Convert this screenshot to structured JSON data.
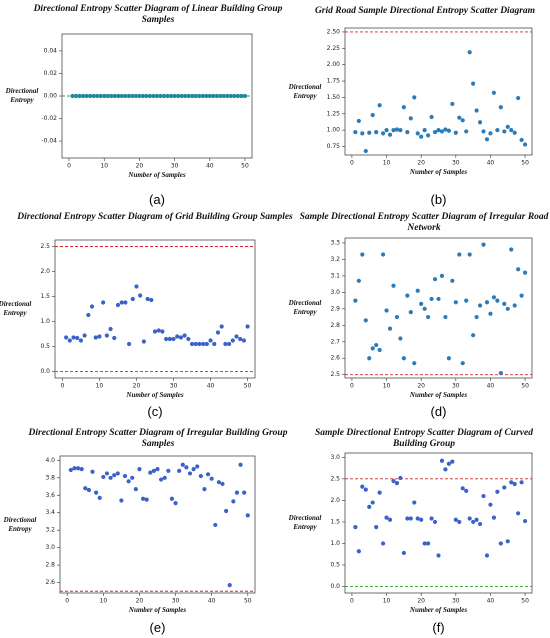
{
  "chart_data": [
    {
      "type": "scatter",
      "title": "Directional Entropy Scatter Diagram of Linear Building Group Samples",
      "xlabel": "Number of Samples",
      "ylabel": "Directional Entropy",
      "caption": "(a)",
      "color": "#1a8a99",
      "x": [
        1,
        2,
        3,
        4,
        5,
        6,
        7,
        8,
        9,
        10,
        11,
        12,
        13,
        14,
        15,
        16,
        17,
        18,
        19,
        20,
        21,
        22,
        23,
        24,
        25,
        26,
        27,
        28,
        29,
        30,
        31,
        32,
        33,
        34,
        35,
        36,
        37,
        38,
        39,
        40,
        41,
        42,
        43,
        44,
        45,
        46,
        47,
        48,
        49,
        50
      ],
      "values": [
        0,
        0,
        0,
        0,
        0,
        0,
        0,
        0,
        0,
        0,
        0,
        0,
        0,
        0,
        0,
        0,
        0,
        0,
        0,
        0,
        0,
        0,
        0,
        0,
        0,
        0,
        0,
        0,
        0,
        0,
        0,
        0,
        0,
        0,
        0,
        0,
        0,
        0,
        0,
        0,
        0,
        0,
        0,
        0,
        0,
        0,
        0,
        0,
        0,
        0
      ],
      "xlim": [
        -2,
        52
      ],
      "xticks": [
        0,
        10,
        20,
        30,
        40,
        50
      ],
      "ylim": [
        -0.055,
        0.055
      ],
      "yticks": [
        -0.04,
        -0.02,
        {
          "value": 0,
          "label": "0.00"
        },
        0.02,
        0.04
      ],
      "hlines": [
        {
          "value": 0,
          "color": "#2ca02c"
        }
      ]
    },
    {
      "type": "scatter",
      "title": "Grid Road Sample Directional Entropy Scatter Diagram",
      "xlabel": "Number of Samples",
      "ylabel": "Directional Entropy",
      "caption": "(b)",
      "color": "#2b7bb9",
      "x": [
        1,
        2,
        3,
        4,
        5,
        6,
        7,
        8,
        9,
        10,
        11,
        12,
        13,
        14,
        15,
        16,
        17,
        18,
        19,
        20,
        21,
        22,
        23,
        24,
        25,
        26,
        27,
        28,
        29,
        30,
        31,
        32,
        33,
        34,
        35,
        36,
        37,
        38,
        39,
        40,
        41,
        42,
        43,
        44,
        45,
        46,
        47,
        48,
        49,
        50
      ],
      "values": [
        0.97,
        1.14,
        0.95,
        0.68,
        0.96,
        1.23,
        0.97,
        1.38,
        0.95,
        1.0,
        0.93,
        1.0,
        1.01,
        1.0,
        1.35,
        0.97,
        1.18,
        1.5,
        0.95,
        0.9,
        1.0,
        0.92,
        1.2,
        0.97,
        1.0,
        0.98,
        1.01,
        0.99,
        1.4,
        0.96,
        1.19,
        1.15,
        0.98,
        2.19,
        1.71,
        1.3,
        1.12,
        0.98,
        0.86,
        0.95,
        1.57,
        1.0,
        1.35,
        0.98,
        1.05,
        1.0,
        0.96,
        1.49,
        0.85,
        0.78
      ],
      "xlim": [
        -2,
        52
      ],
      "xticks": [
        0,
        10,
        20,
        30,
        40,
        50
      ],
      "ylim": [
        0.62,
        2.56
      ],
      "yticks": [
        0.75,
        {
          "value": 1,
          "label": "1.00"
        },
        1.25,
        {
          "value": 1.5,
          "label": "1.50"
        },
        1.75,
        {
          "value": 2,
          "label": "2.00"
        },
        2.25,
        {
          "value": 2.5,
          "label": "2.50"
        }
      ],
      "hlines": [
        {
          "value": 2.5,
          "color": "#d62728"
        }
      ]
    },
    {
      "type": "scatter",
      "title": "Directional Entropy Scatter Diagram of Grid Building Group Samples",
      "xlabel": "Number of Samples",
      "ylabel": "Directional Entropy",
      "caption": "(c)",
      "color": "#3a62c8",
      "x": [
        1,
        2,
        3,
        4,
        5,
        6,
        7,
        8,
        9,
        10,
        11,
        12,
        13,
        14,
        15,
        16,
        17,
        18,
        19,
        20,
        21,
        22,
        23,
        24,
        25,
        26,
        27,
        28,
        29,
        30,
        31,
        32,
        33,
        34,
        35,
        36,
        37,
        38,
        39,
        40,
        41,
        42,
        43,
        44,
        45,
        46,
        47,
        48,
        49,
        50
      ],
      "values": [
        0.68,
        0.62,
        0.68,
        0.67,
        0.62,
        0.72,
        1.13,
        1.3,
        0.68,
        0.7,
        1.38,
        0.72,
        0.85,
        0.67,
        1.33,
        1.38,
        1.38,
        0.55,
        1.45,
        1.7,
        1.52,
        0.6,
        1.45,
        1.43,
        0.8,
        0.82,
        0.8,
        0.65,
        0.65,
        0.65,
        0.7,
        0.68,
        0.72,
        0.65,
        0.55,
        0.55,
        0.55,
        0.55,
        0.55,
        0.62,
        0.55,
        0.78,
        0.9,
        0.55,
        0.55,
        0.62,
        0.7,
        0.65,
        0.62,
        0.9
      ],
      "xlim": [
        -2,
        52
      ],
      "xticks": [
        0,
        10,
        20,
        30,
        40,
        50
      ],
      "ylim": [
        -0.13,
        2.63
      ],
      "yticks": [
        {
          "value": 0,
          "label": "0.0"
        },
        0.5,
        {
          "value": 1,
          "label": "1.0"
        },
        1.5,
        {
          "value": 2,
          "label": "2.0"
        },
        2.5
      ],
      "hlines": [
        {
          "value": 2.5,
          "color": "#d62728"
        },
        {
          "value": 0,
          "color": "#2ca02c"
        }
      ]
    },
    {
      "type": "scatter",
      "title": "Sample Directional Entropy Scatter Diagram of Irregular Road Network",
      "xlabel": "Number of Samples",
      "ylabel": "Directional Entropy",
      "caption": "(d)",
      "color": "#2b7bb9",
      "x": [
        1,
        2,
        3,
        4,
        5,
        6,
        7,
        8,
        9,
        10,
        11,
        12,
        13,
        14,
        15,
        16,
        17,
        18,
        19,
        20,
        21,
        22,
        23,
        24,
        25,
        26,
        27,
        28,
        29,
        30,
        31,
        32,
        33,
        34,
        35,
        36,
        37,
        38,
        39,
        40,
        41,
        42,
        43,
        44,
        45,
        46,
        47,
        48,
        49,
        50
      ],
      "values": [
        2.95,
        3.07,
        3.23,
        2.83,
        2.6,
        2.66,
        2.68,
        2.65,
        3.23,
        2.89,
        2.78,
        3.04,
        2.85,
        2.72,
        2.6,
        2.98,
        2.88,
        2.57,
        3.01,
        2.93,
        2.9,
        2.85,
        2.96,
        3.08,
        2.96,
        3.1,
        2.85,
        2.6,
        3.07,
        2.94,
        3.23,
        2.57,
        2.95,
        3.23,
        2.74,
        2.85,
        2.92,
        3.29,
        2.94,
        2.87,
        2.97,
        2.95,
        2.51,
        2.93,
        2.9,
        3.26,
        2.92,
        3.14,
        2.98,
        3.12
      ],
      "xlim": [
        -2,
        52
      ],
      "xticks": [
        0,
        10,
        20,
        30,
        40,
        50
      ],
      "ylim": [
        2.48,
        3.33
      ],
      "yticks": [
        2.5,
        2.6,
        2.7,
        2.8,
        2.9,
        {
          "value": 3,
          "label": "3.0"
        },
        3.1,
        3.2,
        3.3
      ],
      "hlines": [
        {
          "value": 2.5,
          "color": "#d62728"
        }
      ]
    },
    {
      "type": "scatter",
      "title": "Directional Entropy Scatter Diagram of Irregular Building Group Samples",
      "xlabel": "Number of Samples",
      "ylabel": "Directional Entropy",
      "caption": "(e)",
      "color": "#3a62c8",
      "x": [
        1,
        2,
        3,
        4,
        5,
        6,
        7,
        8,
        9,
        10,
        11,
        12,
        13,
        14,
        15,
        16,
        17,
        18,
        19,
        20,
        21,
        22,
        23,
        24,
        25,
        26,
        27,
        28,
        29,
        30,
        31,
        32,
        33,
        34,
        35,
        36,
        37,
        38,
        39,
        40,
        41,
        42,
        43,
        44,
        45,
        46,
        47,
        48,
        49,
        50
      ],
      "values": [
        3.89,
        3.91,
        3.91,
        3.9,
        3.68,
        3.66,
        3.87,
        3.63,
        3.57,
        3.81,
        3.85,
        3.8,
        3.83,
        3.85,
        3.54,
        3.82,
        3.76,
        3.8,
        3.67,
        3.9,
        3.56,
        3.55,
        3.86,
        3.88,
        3.9,
        3.78,
        3.8,
        3.88,
        3.56,
        3.51,
        3.88,
        3.95,
        3.92,
        3.85,
        3.9,
        3.93,
        3.82,
        3.67,
        3.84,
        3.79,
        3.26,
        3.75,
        3.73,
        3.42,
        2.57,
        3.53,
        3.63,
        3.95,
        3.63,
        3.37
      ],
      "xlim": [
        -2,
        52
      ],
      "xticks": [
        0,
        10,
        20,
        30,
        40,
        50
      ],
      "ylim": [
        2.48,
        4.05
      ],
      "yticks": [
        2.6,
        2.8,
        {
          "value": 3,
          "label": "3.0"
        },
        3.2,
        3.4,
        3.6,
        3.8,
        {
          "value": 4,
          "label": "4.0"
        }
      ],
      "hlines": [
        {
          "value": 2.5,
          "color": "#d62728"
        }
      ]
    },
    {
      "type": "scatter",
      "title": "Sample Directional Entropy Scatter Diagram of Curved Building Group",
      "xlabel": "Number of Samples",
      "ylabel": "Directional Entropy",
      "caption": "(f)",
      "color": "#3a62c8",
      "x": [
        1,
        2,
        3,
        4,
        5,
        6,
        7,
        8,
        9,
        10,
        11,
        12,
        13,
        14,
        15,
        16,
        17,
        18,
        19,
        20,
        21,
        22,
        23,
        24,
        25,
        26,
        27,
        28,
        29,
        30,
        31,
        32,
        33,
        34,
        35,
        36,
        37,
        38,
        39,
        40,
        41,
        42,
        43,
        44,
        45,
        46,
        47,
        48,
        49,
        50
      ],
      "values": [
        1.38,
        0.82,
        2.32,
        2.25,
        1.85,
        1.95,
        1.38,
        2.18,
        1.0,
        1.6,
        1.55,
        2.45,
        2.4,
        2.52,
        0.78,
        1.58,
        1.58,
        1.95,
        1.58,
        1.55,
        1.0,
        1.0,
        1.58,
        1.5,
        0.72,
        2.92,
        2.72,
        2.85,
        2.9,
        1.55,
        1.5,
        2.28,
        2.22,
        1.58,
        1.5,
        1.55,
        1.45,
        2.1,
        0.72,
        1.9,
        1.6,
        2.2,
        1.0,
        2.3,
        1.05,
        2.42,
        2.38,
        1.7,
        2.42,
        1.52
      ],
      "xlim": [
        -2,
        52
      ],
      "xticks": [
        0,
        10,
        20,
        30,
        40,
        50
      ],
      "ylim": [
        -0.15,
        3.1
      ],
      "yticks": [
        {
          "value": 0,
          "label": "0.0"
        },
        0.5,
        {
          "value": 1,
          "label": "1.0"
        },
        1.5,
        {
          "value": 2,
          "label": "2.0"
        },
        2.5,
        {
          "value": 3,
          "label": "3.0"
        }
      ],
      "hlines": [
        {
          "value": 2.5,
          "color": "#d62728"
        },
        {
          "value": 0,
          "color": "#2ca02c"
        }
      ]
    }
  ]
}
